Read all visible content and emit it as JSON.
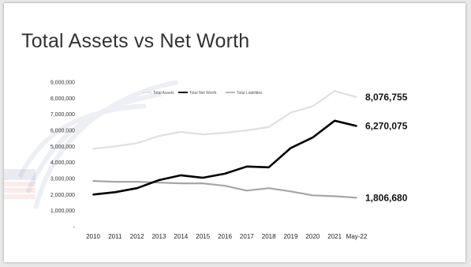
{
  "slide": {
    "title": "Total Assets vs Net Worth"
  },
  "chart_data": {
    "type": "line",
    "title": "",
    "xlabel": "",
    "ylabel": "",
    "categories": [
      "2010",
      "2011",
      "2012",
      "2013",
      "2014",
      "2015",
      "2016",
      "2017",
      "2018",
      "2019",
      "2020",
      "2021",
      "May-22"
    ],
    "ylim": [
      0,
      9000000
    ],
    "yticks": [
      "-",
      "1,000,000",
      "2,000,000",
      "3,000,000",
      "4,000,000",
      "5,000,000",
      "6,000,000",
      "7,000,000",
      "8,000,000",
      "9,000,000"
    ],
    "grid": false,
    "legend": "top",
    "series": [
      {
        "name": "Total Assets",
        "color": "#e0e0e0",
        "values": [
          4850000,
          5000000,
          5200000,
          5650000,
          5900000,
          5750000,
          5850000,
          6000000,
          6200000,
          7100000,
          7500000,
          8450000,
          8076755
        ],
        "end_label": "8,076,755"
      },
      {
        "name": "Total Net Worth",
        "color": "#000000",
        "values": [
          2000000,
          2150000,
          2400000,
          2900000,
          3200000,
          3050000,
          3300000,
          3750000,
          3700000,
          4900000,
          5550000,
          6600000,
          6270075
        ],
        "end_label": "6,270,075"
      },
      {
        "name": "Total Liabilities",
        "color": "#a6a6a6",
        "values": [
          2850000,
          2800000,
          2800000,
          2750000,
          2700000,
          2700000,
          2550000,
          2250000,
          2400000,
          2200000,
          1950000,
          1900000,
          1806680
        ],
        "end_label": "1,806,680"
      }
    ]
  }
}
